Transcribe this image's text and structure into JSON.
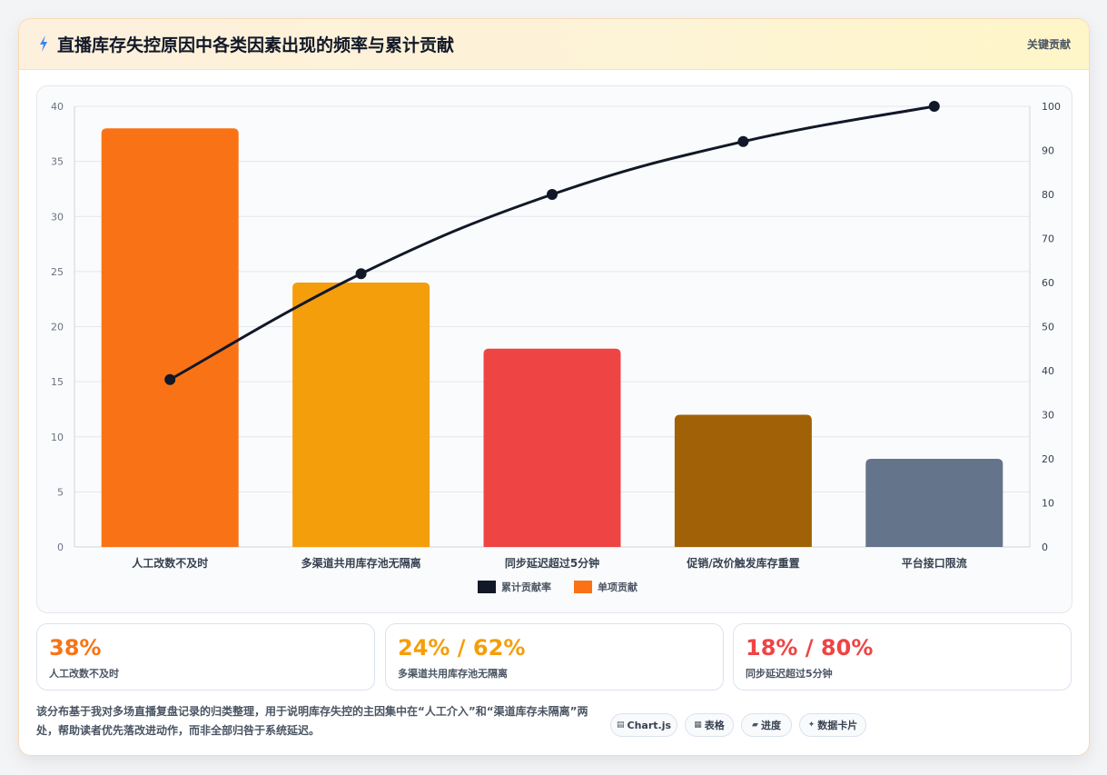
{
  "header": {
    "title": "直播库存失控原因中各类因素出现的频率与累计贡献",
    "tag": "关键贡献"
  },
  "chart_data": {
    "type": "bar",
    "categories": [
      "人工改数不及时",
      "多渠道共用库存池无隔离",
      "同步延迟超过5分钟",
      "促销/改价触发库存重置",
      "平台接口限流"
    ],
    "series": [
      {
        "name": "单项贡献",
        "type": "bar",
        "values": [
          38,
          24,
          18,
          12,
          8
        ],
        "colors": [
          "#f97316",
          "#f59e0b",
          "#ef4444",
          "#a16207",
          "#64748b"
        ]
      },
      {
        "name": "累计贡献率",
        "type": "line",
        "values": [
          38,
          62,
          80,
          92,
          100
        ],
        "color": "#111827"
      }
    ],
    "ylim": [
      0,
      40
    ],
    "y_ticks": [
      "0",
      "5",
      "10",
      "15",
      "20",
      "25",
      "30",
      "35",
      "40"
    ],
    "y2lim": [
      0,
      100
    ],
    "y2_ticks": [
      "0",
      "10",
      "20",
      "30",
      "40",
      "50",
      "60",
      "70",
      "80",
      "90",
      "100"
    ],
    "legend": [
      {
        "label": "累计贡献率",
        "color": "#111827"
      },
      {
        "label": "单项贡献",
        "color": "#f97316"
      }
    ],
    "legend_position": "bottom",
    "grid": true
  },
  "stats": [
    {
      "value": "38%",
      "label": "人工改数不及时",
      "color": "#f97316"
    },
    {
      "value": "24% / 62%",
      "label": "多渠道共用库存池无隔离",
      "color": "#f59e0b"
    },
    {
      "value": "18% / 80%",
      "label": "同步延迟超过5分钟",
      "color": "#ef4444"
    }
  ],
  "note": "该分布基于我对多场直播复盘记录的归类整理，用于说明库存失控的主因集中在“人工介入”和“渠道库存未隔离”两处，帮助读者优先落改进动作，而非全部归咎于系统延迟。",
  "chips": [
    {
      "icon": "▤",
      "label": "Chart.js",
      "icon_name": "chart-icon"
    },
    {
      "icon": "▦",
      "label": "表格",
      "icon_name": "table-icon"
    },
    {
      "icon": "▰",
      "label": "进度",
      "icon_name": "progress-icon"
    },
    {
      "icon": "✦",
      "label": "数据卡片",
      "icon_name": "card-icon"
    }
  ]
}
